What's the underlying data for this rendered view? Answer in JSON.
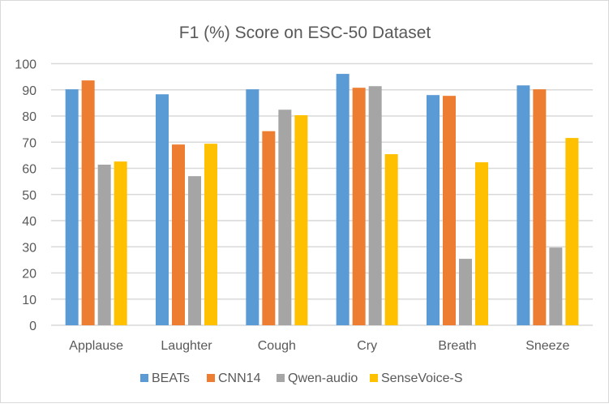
{
  "chart_data": {
    "type": "bar",
    "title": "F1 (%) Score on ESC-50 Dataset",
    "xlabel": "",
    "ylabel": "",
    "ylim": [
      0,
      100
    ],
    "yticks": [
      0,
      10,
      20,
      30,
      40,
      50,
      60,
      70,
      80,
      90,
      100
    ],
    "grid": true,
    "legend": "bottom",
    "categories": [
      "Applause",
      "Laughter",
      "Cough",
      "Cry",
      "Breath",
      "Sneeze"
    ],
    "series": [
      {
        "name": "BEATs",
        "color": "#5b9bd5",
        "values": [
          90.2,
          88.3,
          90.2,
          96.1,
          88.0,
          91.7
        ]
      },
      {
        "name": "CNN14",
        "color": "#ed7d31",
        "values": [
          93.6,
          69.1,
          74.2,
          90.8,
          87.7,
          90.2
        ]
      },
      {
        "name": "Qwen-audio",
        "color": "#a5a5a5",
        "values": [
          61.4,
          57.0,
          82.4,
          91.4,
          25.4,
          29.7
        ]
      },
      {
        "name": "SenseVoice-S",
        "color": "#ffc000",
        "values": [
          62.6,
          69.4,
          80.3,
          65.4,
          62.3,
          71.6
        ]
      }
    ]
  }
}
